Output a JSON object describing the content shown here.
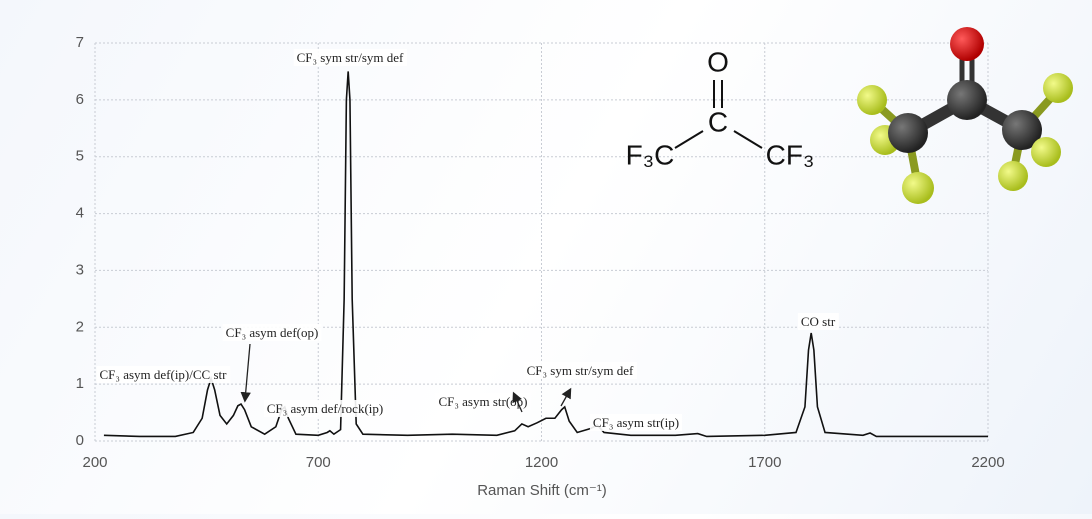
{
  "chart_data": {
    "type": "line",
    "xlabel": "Raman Shift (cm⁻¹)",
    "x": [
      220,
      300,
      380,
      420,
      440,
      452,
      460,
      468,
      480,
      495,
      510,
      520,
      527,
      535,
      550,
      580,
      605,
      618,
      625,
      633,
      650,
      700,
      720,
      726,
      735,
      750,
      758,
      763,
      767,
      771,
      776,
      785,
      800,
      900,
      1000,
      1100,
      1140,
      1156,
      1170,
      1190,
      1210,
      1230,
      1245,
      1252,
      1262,
      1280,
      1310,
      1325,
      1340,
      1400,
      1500,
      1550,
      1570,
      1700,
      1770,
      1790,
      1798,
      1804,
      1810,
      1818,
      1835,
      1920,
      1936,
      1950,
      2200
    ],
    "values": [
      0.1,
      0.08,
      0.08,
      0.15,
      0.4,
      0.9,
      1.1,
      0.9,
      0.45,
      0.3,
      0.45,
      0.62,
      0.65,
      0.55,
      0.25,
      0.12,
      0.25,
      0.55,
      0.6,
      0.4,
      0.12,
      0.1,
      0.15,
      0.18,
      0.12,
      0.2,
      2.5,
      6.0,
      6.5,
      6.0,
      2.5,
      0.3,
      0.12,
      0.1,
      0.12,
      0.1,
      0.18,
      0.3,
      0.25,
      0.32,
      0.4,
      0.4,
      0.55,
      0.6,
      0.35,
      0.15,
      0.22,
      0.28,
      0.15,
      0.1,
      0.1,
      0.13,
      0.08,
      0.1,
      0.15,
      0.6,
      1.6,
      1.9,
      1.6,
      0.6,
      0.15,
      0.1,
      0.14,
      0.08,
      0.08
    ],
    "color": "#111111",
    "xlim": [
      200,
      2200
    ],
    "xticks": [
      200,
      700,
      1200,
      1700,
      2200
    ],
    "ylim": [
      0,
      7
    ],
    "yticks": [
      0,
      1,
      2,
      3,
      4,
      5,
      6,
      7
    ],
    "grid": true,
    "annotations": [
      "CF₃ sym str/sym def",
      "CF₃ asym def(op)",
      "CF₃ asym def(ip)/CC str",
      "CF₃ asym def/rock(ip)",
      "CF₃ asym str(op)",
      "CF₃ sym str/sym def",
      "CF₃ asym str(ip)",
      "CO str"
    ]
  },
  "structure": {
    "labels": [
      "O",
      "C",
      "F₃C",
      "CF₃"
    ]
  }
}
